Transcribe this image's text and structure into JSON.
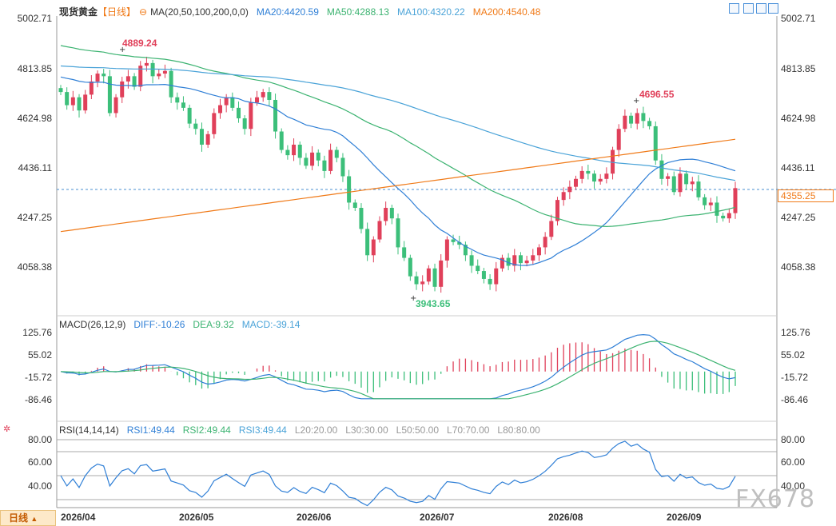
{
  "header": {
    "title": "现货黄金",
    "period": "【日线】",
    "ma_label": "MA(20,50,100,200,0,0)",
    "ma20": "MA20:4420.59",
    "ma50": "MA50:4288.13",
    "ma100": "MA100:4320.22",
    "ma200": "MA200:4540.48"
  },
  "macd_legend": {
    "label": "MACD(26,12,9)",
    "diff": "DIFF:-10.26",
    "dea": "DEA:9.32",
    "macd": "MACD:-39.14"
  },
  "rsi_legend": {
    "label": "RSI(14,14,14)",
    "rsi1": "RSI1:49.44",
    "rsi2": "RSI2:49.44",
    "rsi3": "RSI3:49.44",
    "l20": "L20:20.00",
    "l30": "L30:30.00",
    "l50": "L50:50.00",
    "l70": "L70:70.00",
    "l80": "L80:80.00"
  },
  "price_axis": [
    "5002.71",
    "4813.85",
    "4624.98",
    "4436.11",
    "4247.25",
    "4058.38"
  ],
  "macd_axis": [
    "125.76",
    "55.02",
    "-15.72",
    "-86.46"
  ],
  "rsi_axis": [
    "80.00",
    "60.00",
    "40.00"
  ],
  "x_axis": [
    "2026/04",
    "2026/05",
    "2026/06",
    "2026/07",
    "2026/08",
    "2026/09"
  ],
  "annotations": {
    "high1": "4889.24",
    "low": "3943.65",
    "high2": "4696.55"
  },
  "current_price": "4355.25",
  "period_button": "日线",
  "watermark": "FX678",
  "colors": {
    "up": "#e0405a",
    "down": "#3cbf7a",
    "ma20": "#2f7fd6",
    "ma50": "#3cb371",
    "ma100": "#4aa3d8",
    "ma200": "#f07a18",
    "accent": "#f07a18"
  },
  "chart_data": [
    {
      "type": "candlestick",
      "title": "现货黄金",
      "x_labels": [
        "2026/04",
        "2026/05",
        "2026/06",
        "2026/07",
        "2026/08",
        "2026/09"
      ],
      "ylim": [
        3943.65,
        5002.71
      ],
      "closes": [
        4720,
        4670,
        4700,
        4650,
        4710,
        4760,
        4790,
        4780,
        4640,
        4700,
        4760,
        4780,
        4740,
        4820,
        4830,
        4780,
        4790,
        4800,
        4700,
        4680,
        4660,
        4600,
        4580,
        4520,
        4560,
        4640,
        4670,
        4700,
        4660,
        4620,
        4580,
        4680,
        4700,
        4720,
        4690,
        4570,
        4500,
        4480,
        4520,
        4470,
        4440,
        4490,
        4460,
        4420,
        4500,
        4470,
        4400,
        4300,
        4280,
        4200,
        4100,
        4160,
        4230,
        4280,
        4240,
        4130,
        4090,
        4020,
        3990,
        4000,
        4050,
        3980,
        4080,
        4160,
        4150,
        4140,
        4100,
        4060,
        4040,
        4010,
        3990,
        4050,
        4090,
        4060,
        4100,
        4070,
        4080,
        4100,
        4130,
        4170,
        4230,
        4310,
        4340,
        4360,
        4390,
        4420,
        4410,
        4380,
        4390,
        4410,
        4500,
        4580,
        4630,
        4600,
        4640,
        4610,
        4590,
        4460,
        4390,
        4400,
        4340,
        4410,
        4370,
        4380,
        4320,
        4290,
        4300,
        4250,
        4240,
        4260,
        4355
      ],
      "key_levels": {
        "high_1": 4889.24,
        "low": 3943.65,
        "high_2": 4696.55,
        "current": 4355.25
      },
      "moving_averages": {
        "MA20": 4420.59,
        "MA50": 4288.13,
        "MA100": 4320.22,
        "MA200": 4540.48
      }
    },
    {
      "type": "bar",
      "title": "MACD(26,12,9)",
      "ylim": [
        -86.46,
        125.76
      ],
      "series": [
        {
          "name": "DIFF",
          "last": -10.26
        },
        {
          "name": "DEA",
          "last": 9.32
        },
        {
          "name": "MACD",
          "last": -39.14
        }
      ]
    },
    {
      "type": "line",
      "title": "RSI(14,14,14)",
      "ylim": [
        20,
        80
      ],
      "series": [
        {
          "name": "RSI1",
          "last": 49.44
        },
        {
          "name": "RSI2",
          "last": 49.44
        },
        {
          "name": "RSI3",
          "last": 49.44
        }
      ],
      "levels": [
        20,
        30,
        50,
        70,
        80
      ]
    }
  ]
}
